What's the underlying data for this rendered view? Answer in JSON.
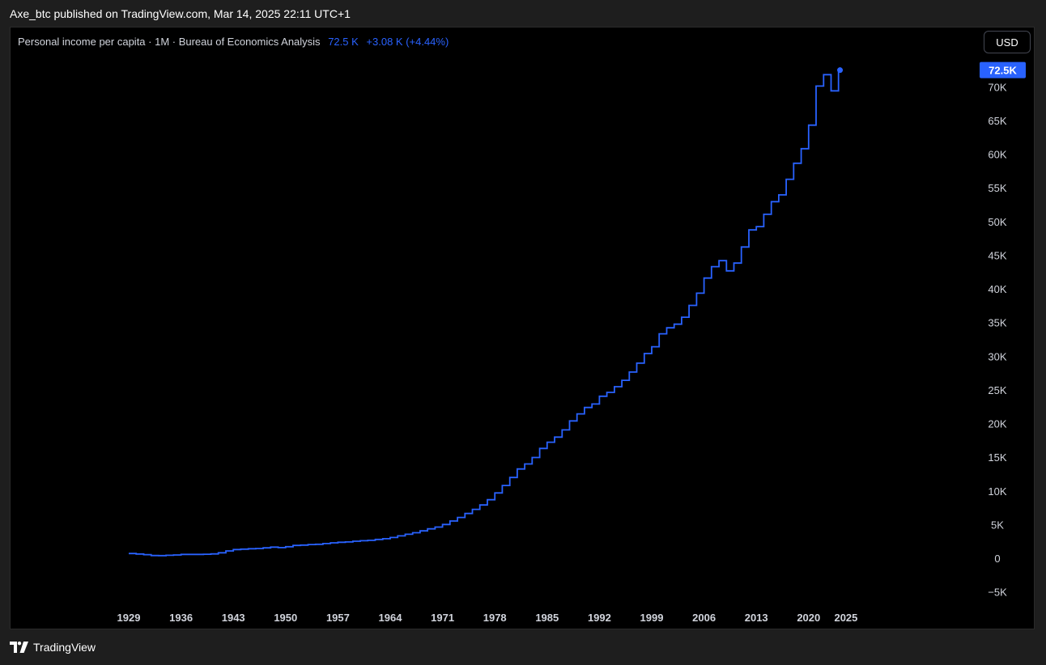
{
  "header": {
    "published_line": "Axe_btc published on TradingView.com, Mar 14, 2025 22:11 UTC+1"
  },
  "legend": {
    "title": "Personal income per capita · 1M · Bureau of Economics Analysis",
    "last_value": "72.5 K",
    "change": "+3.08 K (+4.44%)"
  },
  "currency_button": "USD",
  "price_tag": "72.5K",
  "footer": {
    "brand": "TradingView"
  },
  "colors": {
    "series": "#2962ff",
    "background": "#000000",
    "text": "#d1d4dc"
  },
  "chart_data": {
    "type": "line",
    "style": "step",
    "title": "Personal income per capita",
    "x_label": "",
    "y_label": "",
    "y_unit": "USD",
    "ylim": [
      -5000,
      75000
    ],
    "y_ticks": [
      "−5K",
      "0",
      "5K",
      "10K",
      "15K",
      "20K",
      "25K",
      "30K",
      "35K",
      "40K",
      "45K",
      "50K",
      "55K",
      "60K",
      "65K",
      "70K"
    ],
    "y_tick_values": [
      -5000,
      0,
      5000,
      10000,
      15000,
      20000,
      25000,
      30000,
      35000,
      40000,
      45000,
      50000,
      55000,
      60000,
      65000,
      70000
    ],
    "x_ticks": [
      "1929",
      "1936",
      "1943",
      "1950",
      "1957",
      "1964",
      "1971",
      "1978",
      "1985",
      "1992",
      "1999",
      "2006",
      "2013",
      "2020",
      "2025"
    ],
    "x_tick_values": [
      1929,
      1936,
      1943,
      1950,
      1957,
      1964,
      1971,
      1978,
      1985,
      1992,
      1999,
      2006,
      2013,
      2020,
      2025
    ],
    "grid": false,
    "series": [
      {
        "name": "Personal income per capita",
        "x": [
          1929,
          1930,
          1931,
          1932,
          1933,
          1934,
          1935,
          1936,
          1937,
          1938,
          1939,
          1940,
          1941,
          1942,
          1943,
          1944,
          1945,
          1946,
          1947,
          1948,
          1949,
          1950,
          1951,
          1952,
          1953,
          1954,
          1955,
          1956,
          1957,
          1958,
          1959,
          1960,
          1961,
          1962,
          1963,
          1964,
          1965,
          1966,
          1967,
          1968,
          1969,
          1970,
          1971,
          1972,
          1973,
          1974,
          1975,
          1976,
          1977,
          1978,
          1979,
          1980,
          1981,
          1982,
          1983,
          1984,
          1985,
          1986,
          1987,
          1988,
          1989,
          1990,
          1991,
          1992,
          1993,
          1994,
          1995,
          1996,
          1997,
          1998,
          1999,
          2000,
          2001,
          2002,
          2003,
          2004,
          2005,
          2006,
          2007,
          2008,
          2009,
          2010,
          2011,
          2012,
          2013,
          2014,
          2015,
          2016,
          2017,
          2018,
          2019,
          2020,
          2021,
          2022,
          2023,
          2024
        ],
        "values": [
          700,
          620,
          530,
          400,
          380,
          430,
          480,
          560,
          570,
          560,
          590,
          640,
          800,
          1080,
          1280,
          1340,
          1410,
          1440,
          1540,
          1650,
          1570,
          1700,
          1900,
          1940,
          2030,
          2070,
          2170,
          2280,
          2370,
          2410,
          2520,
          2590,
          2660,
          2790,
          2900,
          3070,
          3310,
          3550,
          3780,
          4060,
          4360,
          4620,
          5010,
          5520,
          6060,
          6640,
          7250,
          7900,
          8690,
          9690,
          10800,
          11990,
          13250,
          14000,
          14950,
          16300,
          17230,
          17980,
          19050,
          20380,
          21430,
          22380,
          22900,
          24050,
          24620,
          25460,
          26420,
          27640,
          28960,
          30390,
          31400,
          33320,
          34210,
          34750,
          35780,
          37540,
          39350,
          41600,
          43290,
          44180,
          42670,
          43820,
          46210,
          48750,
          49240,
          51060,
          52940,
          53950,
          56270,
          58640,
          60800,
          64300,
          70100,
          71800,
          69390,
          72470
        ]
      }
    ],
    "last_point": {
      "x": 2024.2,
      "value": 72470
    }
  }
}
